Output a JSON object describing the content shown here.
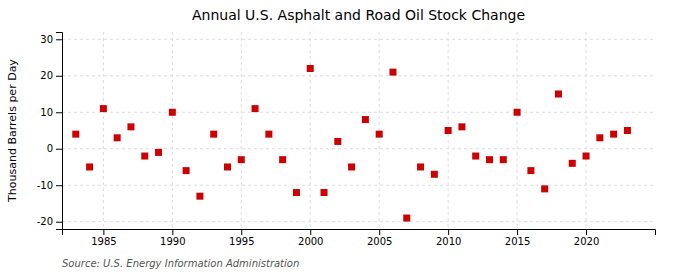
{
  "chart_data": {
    "type": "scatter",
    "title": "Annual U.S. Asphalt and Road Oil Stock Change",
    "ylabel": "Thousand Barrels per Day",
    "source": "Source: U.S. Energy Information Administration",
    "x": [
      1983,
      1984,
      1985,
      1986,
      1987,
      1988,
      1989,
      1990,
      1991,
      1992,
      1993,
      1994,
      1995,
      1996,
      1997,
      1998,
      1999,
      2000,
      2001,
      2002,
      2003,
      2004,
      2005,
      2006,
      2007,
      2008,
      2009,
      2010,
      2011,
      2012,
      2013,
      2014,
      2015,
      2016,
      2017,
      2018,
      2019,
      2020,
      2021,
      2022,
      2023
    ],
    "values": [
      4,
      -5,
      11,
      3,
      6,
      -2,
      -1,
      10,
      -6,
      -13,
      4,
      -5,
      -3,
      11,
      4,
      -3,
      -12,
      22,
      -12,
      2,
      -5,
      8,
      4,
      21,
      -19,
      -5,
      -7,
      5,
      6,
      -2,
      -3,
      -3,
      10,
      -6,
      -11,
      15,
      -4,
      -2,
      3,
      4,
      5
    ],
    "color": "#cc0000",
    "marker": "square",
    "xlim": [
      1982,
      2025
    ],
    "ylim": [
      -22,
      32
    ],
    "xticks": [
      1985,
      1990,
      1995,
      2000,
      2005,
      2010,
      2015,
      2020
    ],
    "yticks": [
      -20,
      -10,
      0,
      10,
      20,
      30
    ],
    "grid": true
  }
}
